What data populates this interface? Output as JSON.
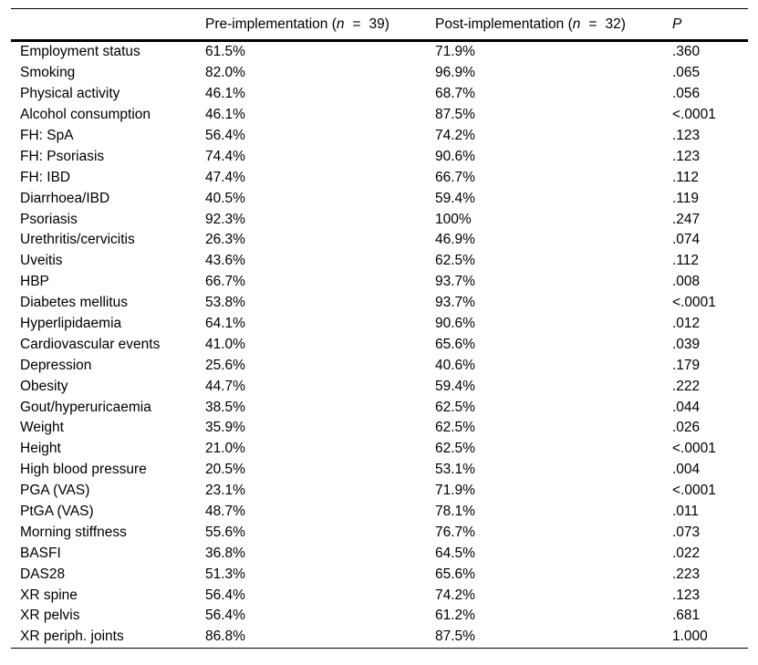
{
  "colors": {
    "background": "#ffffff",
    "text": "#000000",
    "border": "#000000"
  },
  "table": {
    "header": {
      "col1": "",
      "col2": {
        "prefix": "Pre-implementation (",
        "n": "n",
        "eq": "=",
        "value": "39",
        "suffix": ")"
      },
      "col3": {
        "prefix": "Post-implementation (",
        "n": "n",
        "eq": "=",
        "value": "32",
        "suffix": ")"
      },
      "col4": "P"
    },
    "rows": [
      {
        "label": "Employment status",
        "pre": "61.5%",
        "post": "71.9%",
        "p": ".360"
      },
      {
        "label": "Smoking",
        "pre": "82.0%",
        "post": "96.9%",
        "p": ".065"
      },
      {
        "label": "Physical activity",
        "pre": "46.1%",
        "post": "68.7%",
        "p": ".056"
      },
      {
        "label": "Alcohol consumption",
        "pre": "46.1%",
        "post": "87.5%",
        "p": "<.0001"
      },
      {
        "label": "FH: SpA",
        "pre": "56.4%",
        "post": "74.2%",
        "p": ".123"
      },
      {
        "label": "FH: Psoriasis",
        "pre": "74.4%",
        "post": "90.6%",
        "p": ".123"
      },
      {
        "label": "FH: IBD",
        "pre": "47.4%",
        "post": "66.7%",
        "p": ".112"
      },
      {
        "label": "Diarrhoea/IBD",
        "pre": "40.5%",
        "post": "59.4%",
        "p": ".119"
      },
      {
        "label": "Psoriasis",
        "pre": "92.3%",
        "post": "100%",
        "p": ".247"
      },
      {
        "label": "Urethritis/cervicitis",
        "pre": "26.3%",
        "post": "46.9%",
        "p": ".074"
      },
      {
        "label": "Uveitis",
        "pre": "43.6%",
        "post": "62.5%",
        "p": ".112"
      },
      {
        "label": "HBP",
        "pre": "66.7%",
        "post": "93.7%",
        "p": ".008"
      },
      {
        "label": "Diabetes mellitus",
        "pre": "53.8%",
        "post": "93.7%",
        "p": "<.0001"
      },
      {
        "label": "Hyperlipidaemia",
        "pre": "64.1%",
        "post": "90.6%",
        "p": ".012"
      },
      {
        "label": "Cardiovascular events",
        "pre": "41.0%",
        "post": "65.6%",
        "p": ".039"
      },
      {
        "label": "Depression",
        "pre": "25.6%",
        "post": "40.6%",
        "p": ".179"
      },
      {
        "label": "Obesity",
        "pre": "44.7%",
        "post": "59.4%",
        "p": ".222"
      },
      {
        "label": "Gout/hyperuricaemia",
        "pre": "38.5%",
        "post": "62.5%",
        "p": ".044"
      },
      {
        "label": "Weight",
        "pre": "35.9%",
        "post": "62.5%",
        "p": ".026"
      },
      {
        "label": "Height",
        "pre": "21.0%",
        "post": "62.5%",
        "p": "<.0001"
      },
      {
        "label": "High blood pressure",
        "pre": "20.5%",
        "post": "53.1%",
        "p": ".004"
      },
      {
        "label": "PGA (VAS)",
        "pre": "23.1%",
        "post": "71.9%",
        "p": "<.0001"
      },
      {
        "label": "PtGA (VAS)",
        "pre": "48.7%",
        "post": "78.1%",
        "p": ".011"
      },
      {
        "label": "Morning stiffness",
        "pre": "55.6%",
        "post": "76.7%",
        "p": ".073"
      },
      {
        "label": "BASFI",
        "pre": "36.8%",
        "post": "64.5%",
        "p": ".022"
      },
      {
        "label": "DAS28",
        "pre": "51.3%",
        "post": "65.6%",
        "p": ".223"
      },
      {
        "label": "XR spine",
        "pre": "56.4%",
        "post": "74.2%",
        "p": ".123"
      },
      {
        "label": "XR pelvis",
        "pre": "56.4%",
        "post": "61.2%",
        "p": ".681"
      },
      {
        "label": "XR periph. joints",
        "pre": "86.8%",
        "post": "87.5%",
        "p": "1.000"
      }
    ]
  }
}
